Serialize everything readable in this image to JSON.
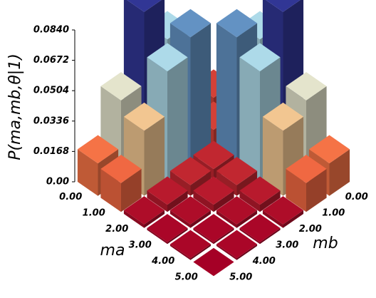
{
  "chart_data": {
    "type": "bar3d",
    "z_label": "P(ma,mb,θ|1)",
    "x_label": "ma",
    "y_label": "mb",
    "ma_ticks": [
      {
        "value": 0,
        "label": "0.00"
      },
      {
        "value": 1,
        "label": "1.00"
      },
      {
        "value": 2,
        "label": "2.00"
      },
      {
        "value": 3,
        "label": "3.00"
      },
      {
        "value": 4,
        "label": "4.00"
      },
      {
        "value": 5,
        "label": "5.00"
      }
    ],
    "mb_ticks": [
      {
        "value": 0,
        "label": "0.00"
      },
      {
        "value": 1,
        "label": "1.00"
      },
      {
        "value": 2,
        "label": "2.00"
      },
      {
        "value": 3,
        "label": "3.00"
      },
      {
        "value": 4,
        "label": "4.00"
      },
      {
        "value": 5,
        "label": "5.00"
      }
    ],
    "values": [
      [
        0.01,
        0.012,
        0.06,
        0.084,
        0.044,
        0.018
      ],
      [
        0.012,
        0.01,
        0.07,
        0.06,
        0.036,
        0.016
      ],
      [
        0.06,
        0.07,
        0.006,
        0.006,
        0.004,
        0.002
      ],
      [
        0.084,
        0.06,
        0.006,
        0.004,
        0.002,
        0.001
      ],
      [
        0.044,
        0.036,
        0.004,
        0.002,
        0.001,
        0.001
      ],
      [
        0.018,
        0.016,
        0.002,
        0.001,
        0.001,
        0
      ]
    ],
    "zlim": [
      0,
      0.084
    ],
    "zticks": [
      {
        "value": 0,
        "label": "0.00"
      },
      0.0168,
      0.0336,
      0.0504,
      0.0672,
      {
        "value": 0.084,
        "label": "0.0840"
      }
    ]
  }
}
